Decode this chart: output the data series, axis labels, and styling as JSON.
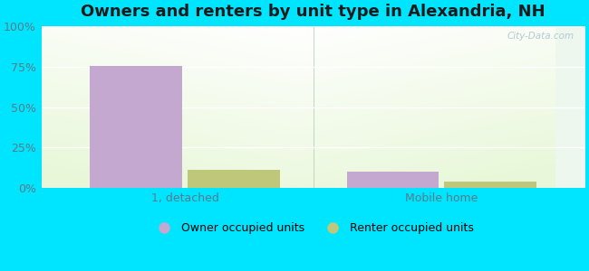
{
  "title": "Owners and renters by unit type in Alexandria, NH",
  "categories": [
    "1, detached",
    "Mobile home"
  ],
  "series": [
    {
      "name": "Owner occupied units",
      "color": "#c5a8d0",
      "values": [
        75.5,
        10.0
      ]
    },
    {
      "name": "Renter occupied units",
      "color": "#bfc87a",
      "values": [
        11.0,
        4.0
      ]
    }
  ],
  "ylim": [
    0,
    100
  ],
  "yticks": [
    0,
    25,
    50,
    75,
    100
  ],
  "ytick_labels": [
    "0%",
    "25%",
    "50%",
    "75%",
    "100%"
  ],
  "bar_width": 0.18,
  "background_color_outer": "#00e5ff",
  "title_fontsize": 13,
  "axis_fontsize": 9,
  "legend_fontsize": 9,
  "tick_label_color": "#5a7a8a",
  "watermark": "City-Data.com",
  "grid_color": "#d8e8d0",
  "group_centers": [
    0.28,
    0.78
  ]
}
